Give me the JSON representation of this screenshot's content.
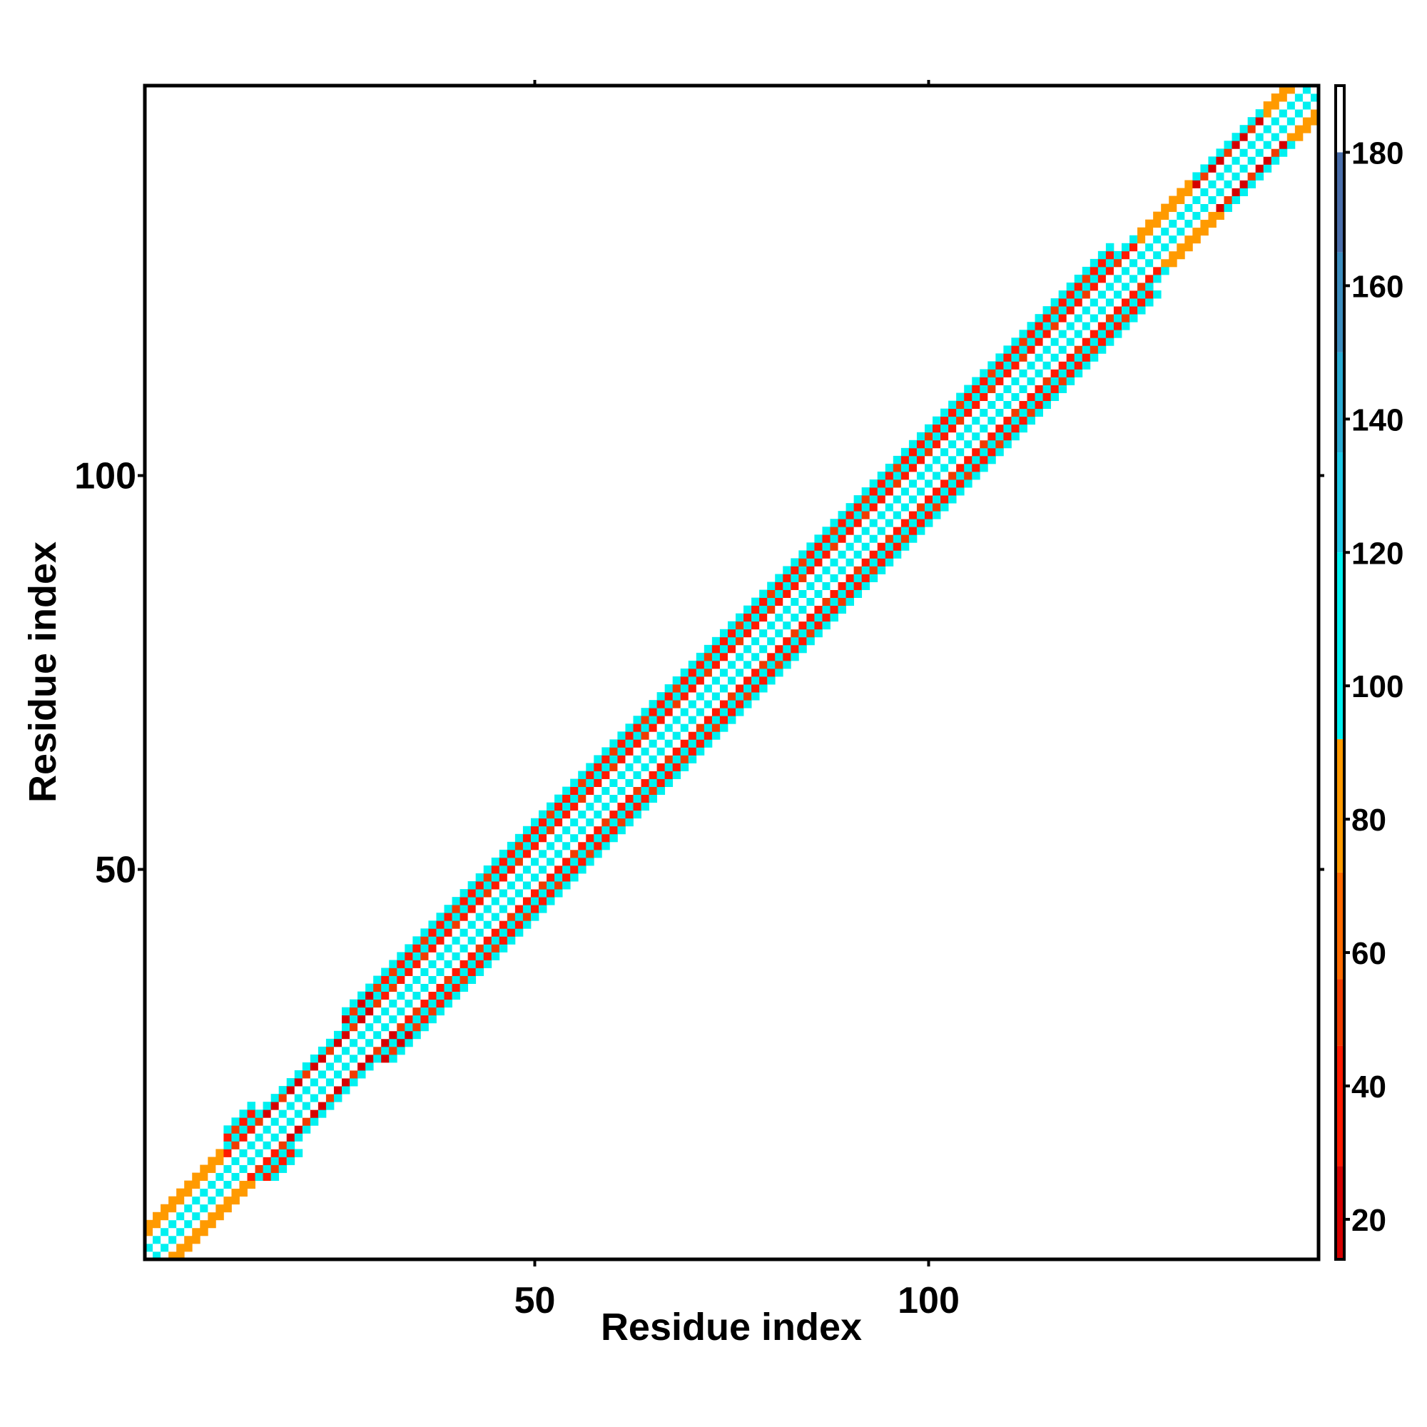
{
  "chart_data": {
    "type": "heatmap",
    "title": "",
    "xlabel": "Residue index",
    "ylabel": "Residue index",
    "x_ticks": [
      50,
      100
    ],
    "y_ticks": [
      50,
      100
    ],
    "xlim": [
      1,
      149
    ],
    "ylim": [
      1,
      149
    ],
    "n_residues": 149,
    "colorbar": {
      "ticks": [
        20,
        40,
        60,
        80,
        100,
        120,
        140,
        160,
        180
      ],
      "range": [
        14,
        190
      ],
      "bins": [
        {
          "from": 14,
          "to": 28,
          "color": "#d40000"
        },
        {
          "from": 28,
          "to": 46,
          "color": "#ff1a00"
        },
        {
          "from": 46,
          "to": 56,
          "color": "#f03c00"
        },
        {
          "from": 56,
          "to": 72,
          "color": "#ff6a00"
        },
        {
          "from": 72,
          "to": 92,
          "color": "#ff9a00"
        },
        {
          "from": 92,
          "to": 120,
          "color": "#00f0f0"
        },
        {
          "from": 120,
          "to": 135,
          "color": "#1ec8e6"
        },
        {
          "from": 135,
          "to": 150,
          "color": "#2aaad2"
        },
        {
          "from": 150,
          "to": 165,
          "color": "#3c8cbe"
        },
        {
          "from": 165,
          "to": 180,
          "color": "#4a6eaa"
        },
        {
          "from": 180,
          "to": 190,
          "color": "#ffffff"
        }
      ]
    },
    "band": {
      "description_values": "Band of contacts along the diagonal; value per cell depends on |i-j| separation",
      "offsets": [
        {
          "d": 0,
          "value": 185
        },
        {
          "d": 1,
          "value": 110
        },
        {
          "d": 2,
          "value": 185
        },
        {
          "d": 3,
          "value": 30
        },
        {
          "d": 4,
          "value": 110
        },
        {
          "d": 5,
          "value": 20
        },
        {
          "d": 6,
          "value": 100
        }
      ],
      "orange_regions": [
        [
          1,
          10
        ],
        [
          127,
          133
        ],
        [
          143,
          149
        ]
      ],
      "red_regions": [
        [
          15,
          30
        ],
        [
          130,
          145
        ]
      ],
      "narrow_regions": [
        [
          1,
          10
        ],
        [
          15,
          25
        ],
        [
          124,
          149
        ]
      ]
    }
  }
}
